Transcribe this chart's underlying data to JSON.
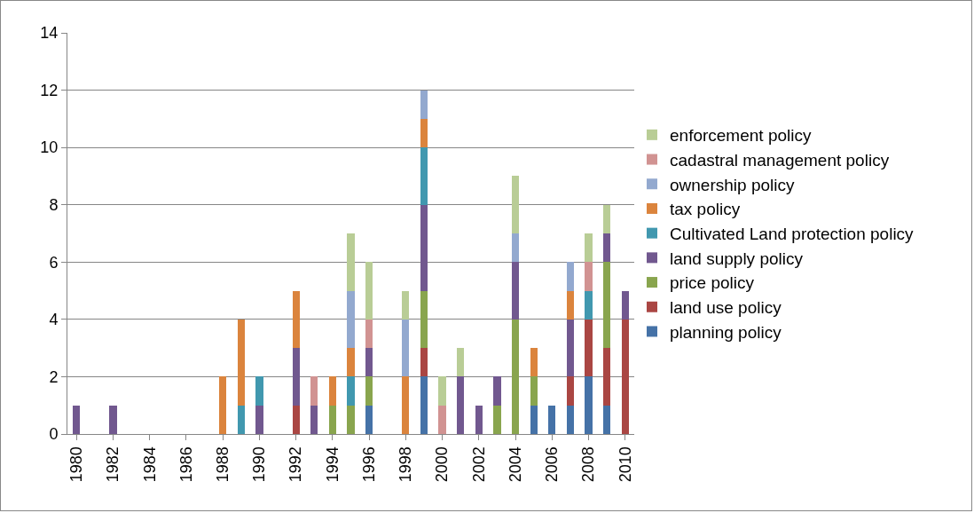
{
  "chart_data": {
    "type": "bar",
    "stacked": true,
    "categories": [
      "1980",
      null,
      "1982",
      null,
      "1984",
      null,
      "1986",
      null,
      "1988",
      null,
      "1990",
      null,
      "1992",
      null,
      "1994",
      null,
      "1996",
      null,
      "1998",
      null,
      "2000",
      null,
      "2002",
      null,
      "2004",
      null,
      "2006",
      null,
      "2008",
      null,
      "2010"
    ],
    "series": [
      {
        "name": "planning policy",
        "color": "#4572a7",
        "values": [
          0,
          0,
          0,
          0,
          0,
          0,
          0,
          0,
          0,
          0,
          0,
          0,
          0,
          0,
          0,
          0,
          1,
          0,
          0,
          2,
          0,
          0,
          0,
          0,
          0,
          1,
          1,
          1,
          2,
          1,
          0
        ]
      },
      {
        "name": "land use policy",
        "color": "#aa4643",
        "values": [
          0,
          0,
          0,
          0,
          0,
          0,
          0,
          0,
          0,
          0,
          0,
          0,
          1,
          0,
          0,
          0,
          0,
          0,
          0,
          1,
          0,
          0,
          0,
          0,
          0,
          0,
          0,
          1,
          2,
          2,
          4
        ]
      },
      {
        "name": "price policy",
        "color": "#89a54e",
        "values": [
          0,
          0,
          0,
          0,
          0,
          0,
          0,
          0,
          0,
          0,
          0,
          0,
          0,
          0,
          1,
          1,
          1,
          0,
          0,
          2,
          0,
          0,
          0,
          1,
          4,
          1,
          0,
          0,
          0,
          3,
          0
        ]
      },
      {
        "name": "land supply policy",
        "color": "#71588f",
        "values": [
          1,
          0,
          1,
          0,
          0,
          0,
          0,
          0,
          0,
          0,
          1,
          0,
          2,
          1,
          0,
          0,
          1,
          0,
          0,
          3,
          0,
          2,
          1,
          1,
          2,
          0,
          0,
          2,
          0,
          1,
          1
        ]
      },
      {
        "name": "Cultivated Land protection policy",
        "color": "#4198af",
        "values": [
          0,
          0,
          0,
          0,
          0,
          0,
          0,
          0,
          0,
          1,
          1,
          0,
          0,
          0,
          0,
          1,
          0,
          0,
          0,
          2,
          0,
          0,
          0,
          0,
          0,
          0,
          0,
          0,
          1,
          0,
          0
        ]
      },
      {
        "name": "tax policy",
        "color": "#db843d",
        "values": [
          0,
          0,
          0,
          0,
          0,
          0,
          0,
          0,
          2,
          3,
          0,
          0,
          2,
          0,
          1,
          1,
          0,
          0,
          2,
          1,
          0,
          0,
          0,
          0,
          0,
          1,
          0,
          1,
          0,
          0,
          0
        ]
      },
      {
        "name": "ownership policy",
        "color": "#93a9cf",
        "values": [
          0,
          0,
          0,
          0,
          0,
          0,
          0,
          0,
          0,
          0,
          0,
          0,
          0,
          0,
          0,
          2,
          0,
          0,
          2,
          1,
          0,
          0,
          0,
          0,
          1,
          0,
          0,
          1,
          0,
          0,
          0
        ]
      },
      {
        "name": "cadastral management policy",
        "color": "#d19392",
        "values": [
          0,
          0,
          0,
          0,
          0,
          0,
          0,
          0,
          0,
          0,
          0,
          0,
          0,
          1,
          0,
          0,
          1,
          0,
          0,
          0,
          1,
          0,
          0,
          0,
          0,
          0,
          0,
          0,
          1,
          0,
          0
        ]
      },
      {
        "name": "enforcement policy",
        "color": "#b9cd96",
        "values": [
          0,
          0,
          0,
          0,
          0,
          0,
          0,
          0,
          0,
          0,
          0,
          0,
          0,
          0,
          0,
          2,
          2,
          0,
          1,
          0,
          1,
          1,
          0,
          0,
          2,
          0,
          0,
          0,
          1,
          1,
          0
        ]
      }
    ],
    "ylim": [
      0,
      14
    ],
    "yticks": [
      0,
      2,
      4,
      6,
      8,
      10,
      12,
      14
    ],
    "grid": "y",
    "legend": "right"
  }
}
